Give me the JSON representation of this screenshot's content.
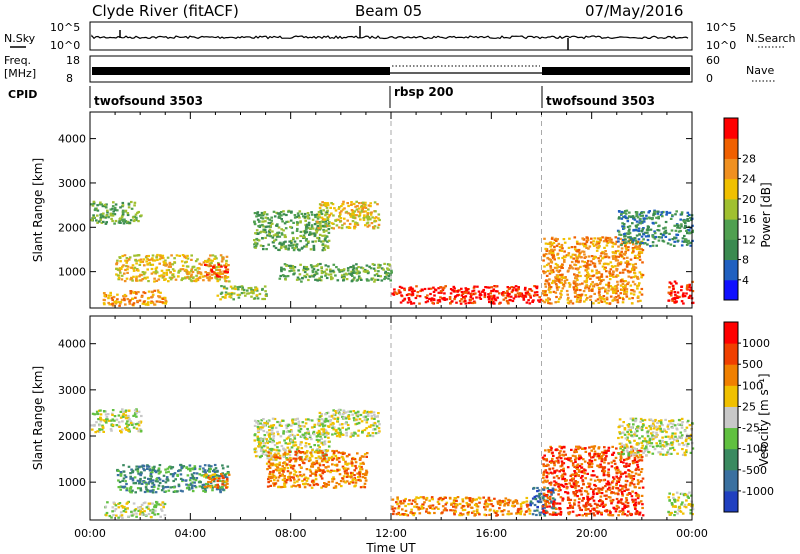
{
  "header": {
    "station": "Clyde River (fitACF)",
    "beam": "Beam 05",
    "date": "07/May/2016"
  },
  "status_panels": {
    "nsky_label": "N.Sky",
    "nsearch_label": "N.Search",
    "nsky_ticks": [
      "10^5",
      "10^0"
    ],
    "freq_label_1": "Freq.",
    "freq_label_2": "[MHz]",
    "freq_ticks": [
      "18",
      "8"
    ],
    "nave_label": "Nave",
    "nave_ticks": [
      "60",
      "0"
    ],
    "cpid_label": "CPID",
    "cpid_segments": [
      {
        "name": "twofsound 3503",
        "start_hour": 0,
        "end_hour": 12
      },
      {
        "name": "rbsp 200",
        "start_hour": 12,
        "end_hour": 18
      },
      {
        "name": "twofsound 3503",
        "start_hour": 18,
        "end_hour": 24
      }
    ]
  },
  "chart_data": [
    {
      "type": "heatmap",
      "panel": "power",
      "ylabel": "Slant Range [km]",
      "ylim": [
        180,
        4600
      ],
      "yticks": [
        "1000",
        "2000",
        "3000",
        "4000"
      ],
      "xlim": [
        0,
        24
      ],
      "colorbar_label": "Power [dB]",
      "colorbar_ticks": [
        "4",
        "8",
        "12",
        "16",
        "20",
        "24",
        "28"
      ],
      "colorbar_colors": [
        "#1010ff",
        "#2060c0",
        "#3a8a50",
        "#50a050",
        "#a0c030",
        "#f0c000",
        "#f09020",
        "#f06000",
        "#ff0000"
      ],
      "regions": [
        {
          "t0": 0.0,
          "t1": 2.0,
          "r0": 2100,
          "r1": 2600,
          "level": 3
        },
        {
          "t0": 1.0,
          "t1": 5.5,
          "r0": 800,
          "r1": 1400,
          "level": 5
        },
        {
          "t0": 0.5,
          "t1": 3.0,
          "r0": 250,
          "r1": 600,
          "level": 6
        },
        {
          "t0": 4.5,
          "t1": 5.5,
          "r0": 900,
          "r1": 1200,
          "level": 7
        },
        {
          "t0": 5.0,
          "t1": 7.0,
          "r0": 400,
          "r1": 700,
          "level": 4
        },
        {
          "t0": 6.5,
          "t1": 9.5,
          "r0": 1500,
          "r1": 2400,
          "level": 3
        },
        {
          "t0": 7.5,
          "t1": 12.0,
          "r0": 800,
          "r1": 1200,
          "level": 3
        },
        {
          "t0": 9.0,
          "t1": 11.5,
          "r0": 2000,
          "r1": 2600,
          "level": 5
        },
        {
          "t0": 12.0,
          "t1": 18.0,
          "r0": 300,
          "r1": 700,
          "level": 8
        },
        {
          "t0": 18.0,
          "t1": 22.0,
          "r0": 300,
          "r1": 1800,
          "level": 6
        },
        {
          "t0": 21.0,
          "t1": 24.0,
          "r0": 1600,
          "r1": 2400,
          "level": 2
        },
        {
          "t0": 23.0,
          "t1": 24.0,
          "r0": 300,
          "r1": 800,
          "level": 8
        }
      ]
    },
    {
      "type": "heatmap",
      "panel": "velocity",
      "ylabel": "Slant Range [km]",
      "xlabel": "Time UT",
      "ylim": [
        180,
        4600
      ],
      "yticks": [
        "1000",
        "2000",
        "3000",
        "4000"
      ],
      "xlim": [
        0,
        24
      ],
      "xticks": [
        "00:00",
        "04:00",
        "08:00",
        "12:00",
        "16:00",
        "20:00",
        "00:00"
      ],
      "colorbar_label": "Velocity [m s⁻¹]",
      "colorbar_ticks": [
        "1000",
        "500",
        "100",
        "25",
        "-25",
        "-100",
        "-500",
        "-1000"
      ],
      "colorbar_colors": [
        "#2040c0",
        "#3a70a0",
        "#3a8a60",
        "#60c040",
        "#c8c8c8",
        "#f0c000",
        "#f08000",
        "#f04000",
        "#ff0000"
      ],
      "regions": [
        {
          "t0": 0.0,
          "t1": 2.0,
          "r0": 2100,
          "r1": 2600,
          "level": 4
        },
        {
          "t0": 1.0,
          "t1": 5.5,
          "r0": 800,
          "r1": 1400,
          "level": 2
        },
        {
          "t0": 0.5,
          "t1": 3.0,
          "r0": 250,
          "r1": 600,
          "level": 4
        },
        {
          "t0": 4.5,
          "t1": 5.5,
          "r0": 900,
          "r1": 1200,
          "level": 6
        },
        {
          "t0": 6.5,
          "t1": 9.5,
          "r0": 1500,
          "r1": 2400,
          "level": 4
        },
        {
          "t0": 7.0,
          "t1": 11.0,
          "r0": 900,
          "r1": 1700,
          "level": 6
        },
        {
          "t0": 9.0,
          "t1": 11.5,
          "r0": 2000,
          "r1": 2600,
          "level": 4
        },
        {
          "t0": 12.0,
          "t1": 17.5,
          "r0": 300,
          "r1": 700,
          "level": 6
        },
        {
          "t0": 17.5,
          "t1": 18.5,
          "r0": 300,
          "r1": 900,
          "level": 1
        },
        {
          "t0": 18.0,
          "t1": 22.0,
          "r0": 300,
          "r1": 1800,
          "level": 7
        },
        {
          "t0": 21.0,
          "t1": 24.0,
          "r0": 1600,
          "r1": 2400,
          "level": 4
        },
        {
          "t0": 23.0,
          "t1": 24.0,
          "r0": 300,
          "r1": 800,
          "level": 4
        }
      ]
    }
  ]
}
